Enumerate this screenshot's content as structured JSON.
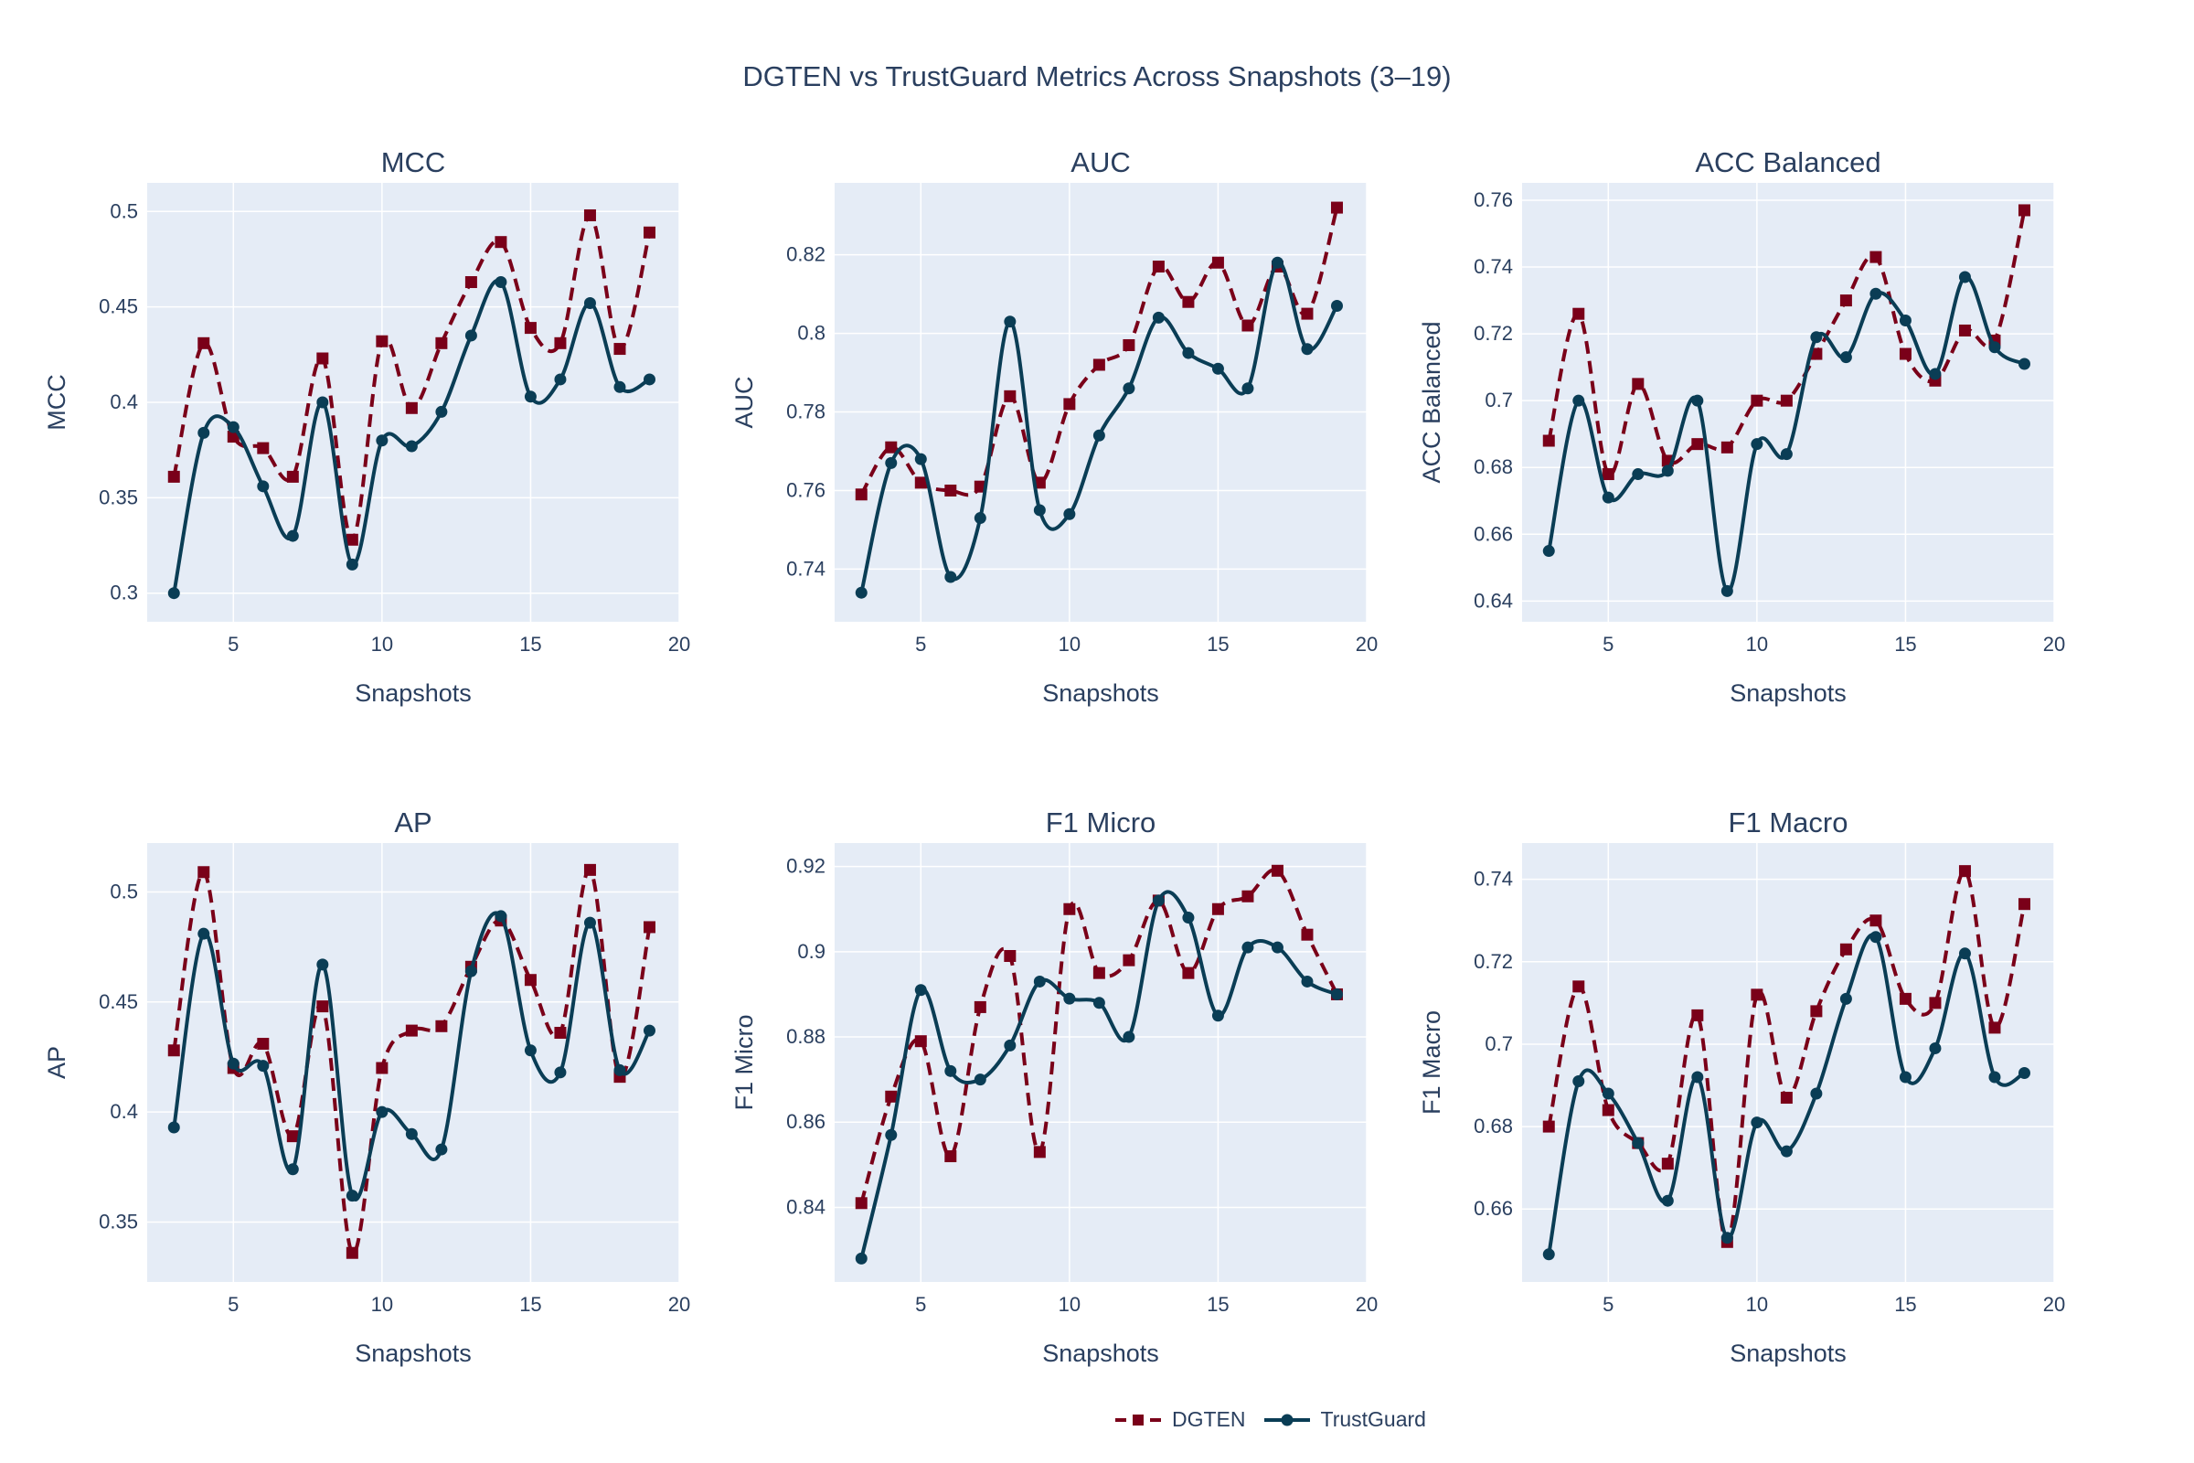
{
  "title": "DGTEN vs TrustGuard Metrics Across Snapshots (3–19)",
  "legend": [
    {
      "name": "DGTEN",
      "color": "#7a0019"
    },
    {
      "name": "TrustGuard",
      "color": "#0a3d55"
    }
  ],
  "chart_data": [
    {
      "type": "line",
      "title": "MCC",
      "xlabel": "Snapshots",
      "ylabel": "MCC",
      "x": [
        3,
        4,
        5,
        6,
        7,
        8,
        9,
        10,
        11,
        12,
        13,
        14,
        15,
        16,
        17,
        18,
        19
      ],
      "xlim": [
        2.1,
        20.0
      ],
      "ylim": [
        0.285,
        0.515
      ],
      "xticks": [
        5,
        10,
        15,
        20
      ],
      "yticks": [
        0.3,
        0.35,
        0.4,
        0.45,
        0.5
      ],
      "ytick_labels": [
        "0.3",
        "0.35",
        "0.4",
        "0.45",
        "0.5"
      ],
      "series": [
        {
          "name": "DGTEN",
          "values": [
            0.361,
            0.431,
            0.382,
            0.376,
            0.361,
            0.423,
            0.328,
            0.432,
            0.397,
            0.431,
            0.463,
            0.484,
            0.439,
            0.431,
            0.498,
            0.428,
            0.489
          ]
        },
        {
          "name": "TrustGuard",
          "values": [
            0.3,
            0.384,
            0.387,
            0.356,
            0.33,
            0.4,
            0.315,
            0.38,
            0.377,
            0.395,
            0.435,
            0.463,
            0.403,
            0.412,
            0.452,
            0.408,
            0.412
          ]
        }
      ]
    },
    {
      "type": "line",
      "title": "AUC",
      "xlabel": "Snapshots",
      "ylabel": "AUC",
      "x": [
        3,
        4,
        5,
        6,
        7,
        8,
        9,
        10,
        11,
        12,
        13,
        14,
        15,
        16,
        17,
        18,
        19
      ],
      "xlim": [
        2.1,
        20.0
      ],
      "ylim": [
        0.7266,
        0.8383
      ],
      "xticks": [
        5,
        10,
        15,
        20
      ],
      "yticks": [
        0.74,
        0.76,
        0.78,
        0.8,
        0.82
      ],
      "ytick_labels": [
        "0.74",
        "0.76",
        "0.78",
        "0.8",
        "0.82"
      ],
      "series": [
        {
          "name": "DGTEN",
          "values": [
            0.759,
            0.771,
            0.762,
            0.76,
            0.761,
            0.784,
            0.762,
            0.782,
            0.792,
            0.797,
            0.817,
            0.808,
            0.818,
            0.802,
            0.817,
            0.805,
            0.832
          ]
        },
        {
          "name": "TrustGuard",
          "values": [
            0.734,
            0.767,
            0.768,
            0.738,
            0.753,
            0.803,
            0.755,
            0.754,
            0.774,
            0.786,
            0.804,
            0.795,
            0.791,
            0.786,
            0.818,
            0.796,
            0.807
          ]
        }
      ]
    },
    {
      "type": "line",
      "title": "ACC Balanced",
      "xlabel": "Snapshots",
      "ylabel": "ACC Balanced",
      "x": [
        3,
        4,
        5,
        6,
        7,
        8,
        9,
        10,
        11,
        12,
        13,
        14,
        15,
        16,
        17,
        18,
        19
      ],
      "xlim": [
        2.1,
        20.0
      ],
      "ylim": [
        0.6338,
        0.7652
      ],
      "xticks": [
        5,
        10,
        15,
        20
      ],
      "yticks": [
        0.64,
        0.66,
        0.68,
        0.7,
        0.72,
        0.74,
        0.76
      ],
      "ytick_labels": [
        "0.64",
        "0.66",
        "0.68",
        "0.7",
        "0.72",
        "0.74",
        "0.76"
      ],
      "series": [
        {
          "name": "DGTEN",
          "values": [
            0.688,
            0.726,
            0.678,
            0.705,
            0.682,
            0.687,
            0.686,
            0.7,
            0.7,
            0.714,
            0.73,
            0.743,
            0.714,
            0.706,
            0.721,
            0.718,
            0.757
          ]
        },
        {
          "name": "TrustGuard",
          "values": [
            0.655,
            0.7,
            0.671,
            0.678,
            0.679,
            0.7,
            0.643,
            0.687,
            0.684,
            0.719,
            0.713,
            0.732,
            0.724,
            0.708,
            0.737,
            0.716,
            0.711
          ]
        }
      ]
    },
    {
      "type": "line",
      "title": "AP",
      "xlabel": "Snapshots",
      "ylabel": "AP",
      "x": [
        3,
        4,
        5,
        6,
        7,
        8,
        9,
        10,
        11,
        12,
        13,
        14,
        15,
        16,
        17,
        18,
        19
      ],
      "xlim": [
        2.1,
        20.0
      ],
      "ylim": [
        0.3228,
        0.5222
      ],
      "xticks": [
        5,
        10,
        15,
        20
      ],
      "yticks": [
        0.35,
        0.4,
        0.45,
        0.5
      ],
      "ytick_labels": [
        "0.35",
        "0.4",
        "0.45",
        "0.5"
      ],
      "series": [
        {
          "name": "DGTEN",
          "values": [
            0.428,
            0.509,
            0.42,
            0.431,
            0.389,
            0.448,
            0.336,
            0.42,
            0.437,
            0.439,
            0.466,
            0.487,
            0.46,
            0.436,
            0.51,
            0.416,
            0.484
          ]
        },
        {
          "name": "TrustGuard",
          "values": [
            0.393,
            0.481,
            0.422,
            0.421,
            0.374,
            0.467,
            0.362,
            0.4,
            0.39,
            0.383,
            0.464,
            0.489,
            0.428,
            0.418,
            0.486,
            0.419,
            0.437
          ]
        }
      ]
    },
    {
      "type": "line",
      "title": "F1 Micro",
      "xlabel": "Snapshots",
      "ylabel": "F1 Micro",
      "x": [
        3,
        4,
        5,
        6,
        7,
        8,
        9,
        10,
        11,
        12,
        13,
        14,
        15,
        16,
        17,
        18,
        19
      ],
      "xlim": [
        2.1,
        20.0
      ],
      "ylim": [
        0.8225,
        0.9255
      ],
      "xticks": [
        5,
        10,
        15,
        20
      ],
      "yticks": [
        0.84,
        0.86,
        0.88,
        0.9,
        0.92
      ],
      "ytick_labels": [
        "0.84",
        "0.86",
        "0.88",
        "0.9",
        "0.92"
      ],
      "series": [
        {
          "name": "DGTEN",
          "values": [
            0.841,
            0.866,
            0.879,
            0.852,
            0.887,
            0.899,
            0.853,
            0.91,
            0.895,
            0.898,
            0.912,
            0.895,
            0.91,
            0.913,
            0.919,
            0.904,
            0.89
          ]
        },
        {
          "name": "TrustGuard",
          "values": [
            0.828,
            0.857,
            0.891,
            0.872,
            0.87,
            0.878,
            0.893,
            0.889,
            0.888,
            0.88,
            0.912,
            0.908,
            0.885,
            0.901,
            0.901,
            0.893,
            0.89
          ]
        }
      ]
    },
    {
      "type": "line",
      "title": "F1 Macro",
      "xlabel": "Snapshots",
      "ylabel": "F1 Macro",
      "x": [
        3,
        4,
        5,
        6,
        7,
        8,
        9,
        10,
        11,
        12,
        13,
        14,
        15,
        16,
        17,
        18,
        19
      ],
      "xlim": [
        2.1,
        20.0
      ],
      "ylim": [
        0.6423,
        0.7488
      ],
      "xticks": [
        5,
        10,
        15,
        20
      ],
      "yticks": [
        0.66,
        0.68,
        0.7,
        0.72,
        0.74
      ],
      "ytick_labels": [
        "0.66",
        "0.68",
        "0.7",
        "0.72",
        "0.74"
      ],
      "series": [
        {
          "name": "DGTEN",
          "values": [
            0.68,
            0.714,
            0.684,
            0.676,
            0.671,
            0.707,
            0.652,
            0.712,
            0.687,
            0.708,
            0.723,
            0.73,
            0.711,
            0.71,
            0.742,
            0.704,
            0.734
          ]
        },
        {
          "name": "TrustGuard",
          "values": [
            0.649,
            0.691,
            0.688,
            0.676,
            0.662,
            0.692,
            0.653,
            0.681,
            0.674,
            0.688,
            0.711,
            0.726,
            0.692,
            0.699,
            0.722,
            0.692,
            0.693
          ]
        }
      ]
    }
  ]
}
